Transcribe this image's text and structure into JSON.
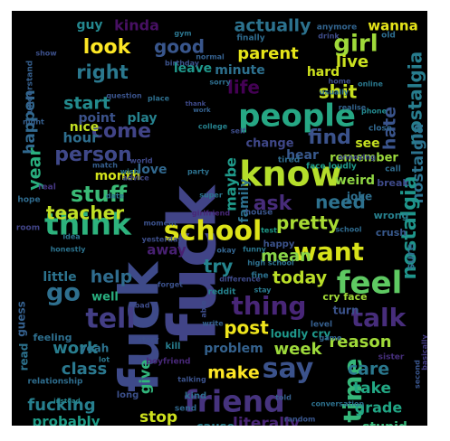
{
  "words": [
    {
      "text": "fuck",
      "c": "#414487"
    },
    {
      "text": "fuck",
      "c": "#3e4a89"
    },
    {
      "text": "school",
      "c": "#dde318"
    },
    {
      "text": "know",
      "c": "#b5de2b"
    },
    {
      "text": "people",
      "c": "#26a784"
    },
    {
      "text": "think",
      "c": "#2db27d"
    },
    {
      "text": "want",
      "c": "#d8e219"
    },
    {
      "text": "friend",
      "c": "#46337e"
    },
    {
      "text": "feel",
      "c": "#5ec962"
    },
    {
      "text": "say",
      "c": "#3b528b"
    },
    {
      "text": "talk",
      "c": "#472d7b"
    },
    {
      "text": "time",
      "c": "#35b779"
    },
    {
      "text": "tell",
      "c": "#433e85"
    },
    {
      "text": "thing",
      "c": "#482677"
    },
    {
      "text": "go",
      "c": "#2e6f8e"
    },
    {
      "text": "girl",
      "c": "#9fda3a"
    },
    {
      "text": "life",
      "c": "#440154"
    },
    {
      "text": "nostalgia",
      "c": "#287d8e"
    },
    {
      "text": "nostalgia",
      "c": "#2c728e"
    },
    {
      "text": "nostalgia",
      "c": "#1f958b"
    },
    {
      "text": "hate",
      "c": "#3a548c"
    },
    {
      "text": "shit",
      "c": "#c8e020"
    },
    {
      "text": "look",
      "c": "#fde725"
    },
    {
      "text": "good",
      "c": "#39568c"
    },
    {
      "text": "right",
      "c": "#2a788e"
    },
    {
      "text": "actually",
      "c": "#2c728e"
    },
    {
      "text": "parent",
      "c": "#e5e419"
    },
    {
      "text": "live",
      "c": "#cae11f"
    },
    {
      "text": "start",
      "c": "#238a8d"
    },
    {
      "text": "happen",
      "c": "#31688e"
    },
    {
      "text": "kinda",
      "c": "#471063"
    },
    {
      "text": "come",
      "c": "#414487"
    },
    {
      "text": "find",
      "c": "#3b528b"
    },
    {
      "text": "person",
      "c": "#3f4889"
    },
    {
      "text": "year",
      "c": "#29af7f"
    },
    {
      "text": "stuff",
      "c": "#3aba76"
    },
    {
      "text": "teacher",
      "c": "#c0df25"
    },
    {
      "text": "ask",
      "c": "#472c7a"
    },
    {
      "text": "need",
      "c": "#2d718e"
    },
    {
      "text": "pretty",
      "c": "#a8db34"
    },
    {
      "text": "help",
      "c": "#2f6c8e"
    },
    {
      "text": "try",
      "c": "#25858e"
    },
    {
      "text": "mean",
      "c": "#89d548"
    },
    {
      "text": "today",
      "c": "#bade28"
    },
    {
      "text": "post",
      "c": "#efe51c"
    },
    {
      "text": "week",
      "c": "#9dd93b"
    },
    {
      "text": "work",
      "c": "#287d8e"
    },
    {
      "text": "class",
      "c": "#2a788e"
    },
    {
      "text": "make",
      "c": "#fde725"
    },
    {
      "text": "give",
      "c": "#31b57b"
    },
    {
      "text": "reason",
      "c": "#a0da39"
    },
    {
      "text": "care",
      "c": "#2a788e"
    },
    {
      "text": "take",
      "c": "#22a884"
    },
    {
      "text": "grade",
      "c": "#21a685"
    },
    {
      "text": "stop",
      "c": "#cde11d"
    },
    {
      "text": "fucking",
      "c": "#277f8e"
    },
    {
      "text": "probably",
      "c": "#1f9e89"
    },
    {
      "text": "literally",
      "c": "#482475"
    },
    {
      "text": "stupid",
      "c": "#35b779"
    },
    {
      "text": "cause",
      "c": "#277f8e"
    },
    {
      "text": "little",
      "c": "#2c738e"
    },
    {
      "text": "maybe",
      "c": "#1f9a8a"
    },
    {
      "text": "weird",
      "c": "#90d743"
    },
    {
      "text": "month",
      "c": "#d2e21b"
    },
    {
      "text": "nice",
      "c": "#c2df23"
    },
    {
      "text": "hour",
      "c": "#2e6e8e"
    },
    {
      "text": "point",
      "c": "#3b528b"
    },
    {
      "text": "play",
      "c": "#26828e"
    },
    {
      "text": "hard",
      "c": "#cde11d"
    },
    {
      "text": "leave",
      "c": "#1f978b"
    },
    {
      "text": "minute",
      "c": "#2d708e"
    },
    {
      "text": "wanna",
      "c": "#e5e419"
    },
    {
      "text": "guy",
      "c": "#24878e"
    },
    {
      "text": "hear",
      "c": "#38588c"
    },
    {
      "text": "remember",
      "c": "#9bd93c"
    },
    {
      "text": "see",
      "c": "#c5e021"
    },
    {
      "text": "change",
      "c": "#3f4788"
    },
    {
      "text": "love",
      "c": "#31688e"
    },
    {
      "text": "family",
      "c": "#2d708e"
    },
    {
      "text": "joke",
      "c": "#2e6e8e"
    },
    {
      "text": "away",
      "c": "#482071"
    },
    {
      "text": "yeah",
      "c": "#2c728e"
    },
    {
      "text": "well",
      "c": "#29af7f"
    },
    {
      "text": "read",
      "c": "#2c728e"
    },
    {
      "text": "guess",
      "c": "#35608d"
    },
    {
      "text": "turn",
      "c": "#3b528b"
    },
    {
      "text": "loudly cry",
      "c": "#1f988b"
    },
    {
      "text": "cry face",
      "c": "#a2da37"
    },
    {
      "text": "happy",
      "c": "#3b528b"
    },
    {
      "text": "problem",
      "c": "#34618d"
    },
    {
      "text": "kill",
      "c": "#287d8e"
    },
    {
      "text": "sure",
      "c": "#2d708e"
    },
    {
      "text": "break",
      "c": "#3e4a89"
    },
    {
      "text": "crush",
      "c": "#38598c"
    },
    {
      "text": "wrong",
      "c": "#27808e"
    },
    {
      "text": "feeling",
      "c": "#2e6f8e"
    },
    {
      "text": "long",
      "c": "#3c508b"
    },
    {
      "text": "kind",
      "c": "#2f6b8e"
    },
    {
      "text": "send",
      "c": "#30678d"
    },
    {
      "text": "relationship",
      "c": "#2e6d8e"
    },
    {
      "text": "brother",
      "c": "#443983"
    },
    {
      "text": "boyfriend",
      "c": "#482878"
    },
    {
      "text": "sister",
      "c": "#472f7d"
    },
    {
      "text": "finally",
      "c": "#2f6b8e"
    },
    {
      "text": "anymore",
      "c": "#32648e"
    },
    {
      "text": "understand",
      "c": "#355f8d"
    },
    {
      "text": "question",
      "c": "#3a538b"
    },
    {
      "text": "usually",
      "c": "#2d718e"
    },
    {
      "text": "college",
      "c": "#26828e"
    },
    {
      "text": "room",
      "c": "#414487"
    },
    {
      "text": "real",
      "c": "#453781"
    },
    {
      "text": "hope",
      "c": "#2f6b8e"
    },
    {
      "text": "night",
      "c": "#355e8d"
    },
    {
      "text": "phone",
      "c": "#23898e"
    },
    {
      "text": "online",
      "c": "#2a788e"
    },
    {
      "text": "home",
      "c": "#3d4e8a"
    },
    {
      "text": "date",
      "c": "#2c728e"
    },
    {
      "text": "close",
      "c": "#31678e"
    },
    {
      "text": "call",
      "c": "#2f6c8e"
    },
    {
      "text": "idea",
      "c": "#2c728e"
    },
    {
      "text": "world",
      "c": "#3e4989"
    },
    {
      "text": "match",
      "c": "#355e8d"
    },
    {
      "text": "face loudly",
      "c": "#1f9a8a"
    },
    {
      "text": "tired",
      "c": "#2f6c8e"
    },
    {
      "text": "test",
      "c": "#1e9b8a"
    },
    {
      "text": "fine",
      "c": "#2c718e"
    },
    {
      "text": "stay",
      "c": "#29798e"
    },
    {
      "text": "funny",
      "c": "#2a768e"
    },
    {
      "text": "reddit",
      "c": "#25838e"
    },
    {
      "text": "okay",
      "c": "#33638d"
    },
    {
      "text": "house",
      "c": "#39558c"
    },
    {
      "text": "old",
      "c": "#2e6d8e"
    },
    {
      "text": "bad",
      "c": "#3e4c8a"
    },
    {
      "text": "story",
      "c": "#3c4f8a"
    },
    {
      "text": "able",
      "c": "#3d4d8a"
    },
    {
      "text": "write",
      "c": "#34608d"
    },
    {
      "text": "talking",
      "c": "#3b528b"
    },
    {
      "text": "place",
      "c": "#2e6f8e"
    },
    {
      "text": "annoying",
      "c": "#3f4889"
    },
    {
      "text": "advice",
      "c": "#3f4788"
    },
    {
      "text": "honestly",
      "c": "#2c738e"
    },
    {
      "text": "wish",
      "c": "#2a778e"
    },
    {
      "text": "normal",
      "c": "#34608d"
    },
    {
      "text": "gym",
      "c": "#2b758e"
    },
    {
      "text": "level",
      "c": "#355e8d"
    },
    {
      "text": "game",
      "c": "#31668e"
    },
    {
      "text": "super",
      "c": "#2b748e"
    },
    {
      "text": "high school",
      "c": "#2d708e"
    },
    {
      "text": "realise",
      "c": "#33638d"
    },
    {
      "text": "thank",
      "c": "#3e4a89"
    },
    {
      "text": "instead",
      "c": "#25858e"
    },
    {
      "text": "basically",
      "c": "#443b84"
    },
    {
      "text": "yesterday",
      "c": "#3d4e8a"
    },
    {
      "text": "birthday",
      "c": "#3b528b"
    },
    {
      "text": "drink",
      "c": "#3e4c8a"
    },
    {
      "text": "random",
      "c": "#39568c"
    },
    {
      "text": "sorry",
      "c": "#2e6e8e"
    },
    {
      "text": "work",
      "c": "#34608d"
    },
    {
      "text": "moment",
      "c": "#3b518b"
    },
    {
      "text": "second",
      "c": "#39558c"
    },
    {
      "text": "difference",
      "c": "#3e4a89"
    },
    {
      "text": "conversation",
      "c": "#2d718e"
    },
    {
      "text": "lot",
      "c": "#2a778e"
    },
    {
      "text": "girlfriend",
      "c": "#482878"
    },
    {
      "text": "forget",
      "c": "#3b518b"
    },
    {
      "text": "told",
      "c": "#355f8d"
    },
    {
      "text": "school",
      "c": "#2f6b8e"
    },
    {
      "text": "self",
      "c": "#3d4d8a"
    },
    {
      "text": "show",
      "c": "#3c508b"
    },
    {
      "text": "party",
      "c": "#2c718e"
    },
    {
      "text": "die",
      "c": "#33638d"
    },
    {
      "text": "covid",
      "c": "#34608d"
    }
  ]
}
